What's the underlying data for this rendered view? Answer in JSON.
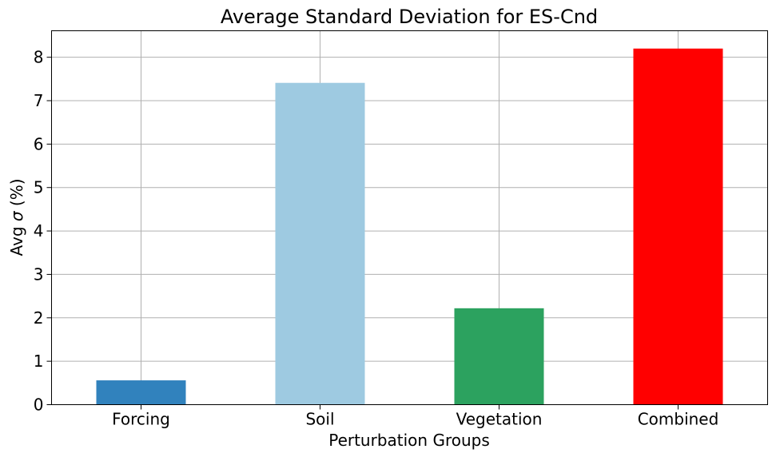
{
  "chart_data": {
    "type": "bar",
    "title": "Average Standard Deviation for ES-Cnd",
    "xlabel": "Perturbation Groups",
    "ylabel_prefix": "Avg ",
    "ylabel_symbol": "σ",
    "ylabel_suffix": " (%)",
    "categories": [
      "Forcing",
      "Soil",
      "Vegetation",
      "Combined"
    ],
    "values": [
      0.56,
      7.41,
      2.22,
      8.2
    ],
    "colors": [
      "#3182bd",
      "#9ecae1",
      "#2ca25f",
      "#ff0000"
    ],
    "ylim": [
      0,
      8.61
    ],
    "yticks": [
      "0",
      "1",
      "2",
      "3",
      "4",
      "5",
      "6",
      "7",
      "8"
    ],
    "grid": true
  }
}
